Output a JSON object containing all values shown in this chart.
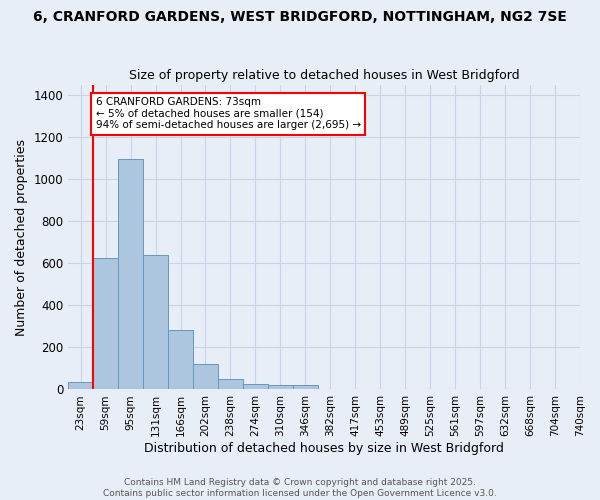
{
  "title_line1": "6, CRANFORD GARDENS, WEST BRIDGFORD, NOTTINGHAM, NG2 7SE",
  "title_line2": "Size of property relative to detached houses in West Bridgford",
  "xlabel": "Distribution of detached houses by size in West Bridgford",
  "ylabel": "Number of detached properties",
  "footer_line1": "Contains HM Land Registry data © Crown copyright and database right 2025.",
  "footer_line2": "Contains public sector information licensed under the Open Government Licence v3.0.",
  "bins": [
    "23sqm",
    "59sqm",
    "95sqm",
    "131sqm",
    "166sqm",
    "202sqm",
    "238sqm",
    "274sqm",
    "310sqm",
    "346sqm",
    "382sqm",
    "417sqm",
    "453sqm",
    "489sqm",
    "525sqm",
    "561sqm",
    "597sqm",
    "632sqm",
    "668sqm",
    "704sqm",
    "740sqm"
  ],
  "bar_values": [
    35,
    625,
    1095,
    640,
    285,
    120,
    50,
    25,
    20,
    20,
    0,
    0,
    0,
    0,
    0,
    0,
    0,
    0,
    0,
    0
  ],
  "bar_color": "#adc6e0",
  "bar_edge_color": "#6699bb",
  "grid_color": "#c8d4e8",
  "background_color": "#e8eef8",
  "annotation_text_line1": "6 CRANFORD GARDENS: 73sqm",
  "annotation_text_line2": "← 5% of detached houses are smaller (154)",
  "annotation_text_line3": "94% of semi-detached houses are larger (2,695) →",
  "red_line_bin_index": 1,
  "ylim": [
    0,
    1450
  ],
  "yticks": [
    0,
    200,
    400,
    600,
    800,
    1000,
    1200,
    1400
  ],
  "title_fontsize": 10,
  "subtitle_fontsize": 9,
  "ylabel_fontsize": 9,
  "xlabel_fontsize": 9,
  "tick_fontsize": 7.5,
  "footer_fontsize": 6.5,
  "ann_fontsize": 7.5
}
